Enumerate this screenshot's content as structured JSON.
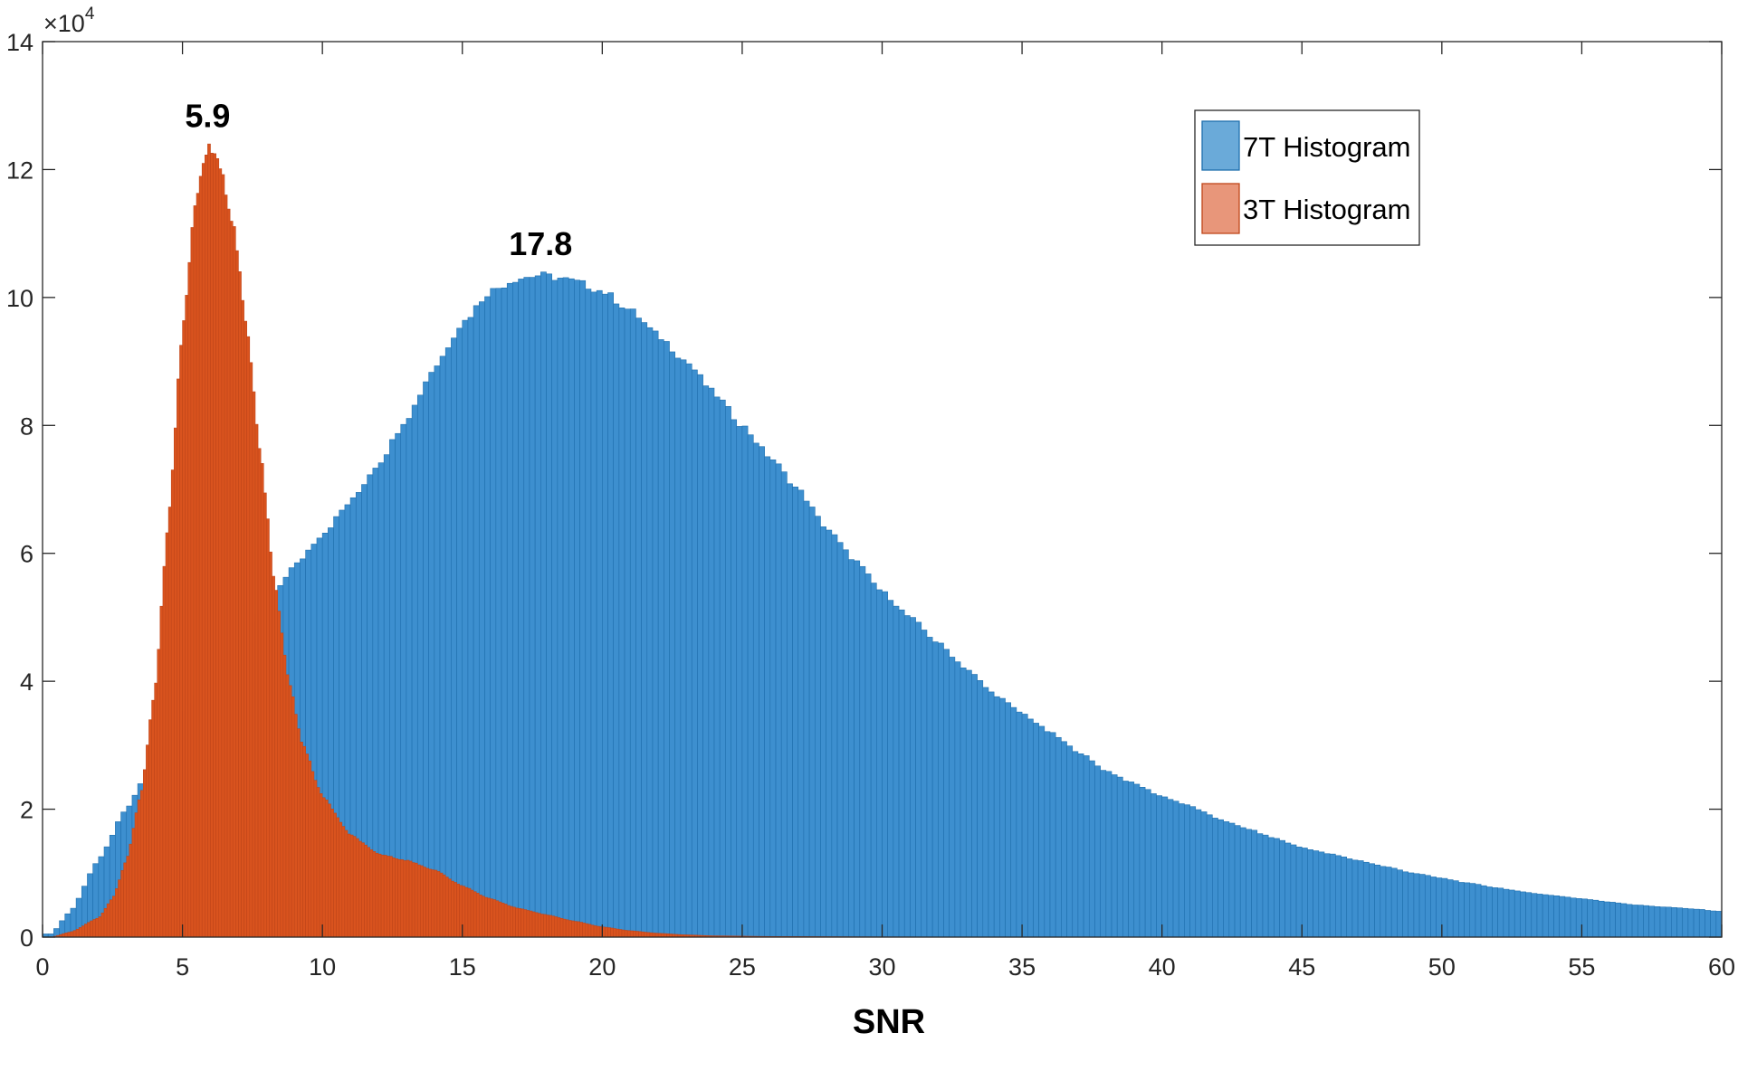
{
  "chart_data": {
    "type": "bar",
    "title": "",
    "xlabel": "SNR",
    "ylabel": "",
    "xlim": [
      0,
      60
    ],
    "ylim": [
      0,
      140000
    ],
    "y_exponent_label": "×10",
    "y_exponent_power": "4",
    "x_ticks": [
      0,
      5,
      10,
      15,
      20,
      25,
      30,
      35,
      40,
      45,
      50,
      55,
      60
    ],
    "x_tick_labels": [
      "0",
      "5",
      "10",
      "15",
      "20",
      "25",
      "30",
      "35",
      "40",
      "45",
      "50",
      "55",
      "60"
    ],
    "y_ticks": [
      0,
      20000,
      40000,
      60000,
      80000,
      100000,
      120000,
      140000
    ],
    "y_tick_labels": [
      "0",
      "2",
      "4",
      "6",
      "8",
      "10",
      "12",
      "14"
    ],
    "grid": false,
    "legend_position": "top-right",
    "series": [
      {
        "name": "7T Histogram",
        "color": "#3d8fcf",
        "edge_color": "#1f6fae",
        "legend_color": "#6aaad9",
        "bin_width": 0.2,
        "x_range": [
          0,
          60
        ],
        "key_points": [
          [
            0.3,
            500
          ],
          [
            1,
            4000
          ],
          [
            2,
            12000
          ],
          [
            3,
            20000
          ],
          [
            4,
            28000
          ],
          [
            5,
            35000
          ],
          [
            6,
            41000
          ],
          [
            7,
            46000
          ],
          [
            8,
            52000
          ],
          [
            9,
            58000
          ],
          [
            10,
            63000
          ],
          [
            11,
            68000
          ],
          [
            12,
            74000
          ],
          [
            13,
            81000
          ],
          [
            14,
            89000
          ],
          [
            15,
            96000
          ],
          [
            16,
            101000
          ],
          [
            17,
            103000
          ],
          [
            17.8,
            103500
          ],
          [
            18.5,
            103000
          ],
          [
            19,
            102500
          ],
          [
            20,
            101000
          ],
          [
            21,
            98000
          ],
          [
            22,
            94000
          ],
          [
            23,
            90000
          ],
          [
            24,
            85000
          ],
          [
            25,
            80000
          ],
          [
            26,
            75000
          ],
          [
            27,
            70000
          ],
          [
            28,
            64000
          ],
          [
            29,
            59000
          ],
          [
            30,
            54000
          ],
          [
            31,
            50000
          ],
          [
            32,
            46000
          ],
          [
            33,
            42000
          ],
          [
            34,
            38000
          ],
          [
            35,
            35000
          ],
          [
            36,
            32000
          ],
          [
            37,
            29000
          ],
          [
            38,
            26000
          ],
          [
            39,
            24000
          ],
          [
            40,
            22000
          ],
          [
            41,
            20500
          ],
          [
            42,
            18500
          ],
          [
            43,
            17000
          ],
          [
            44,
            15500
          ],
          [
            45,
            14000
          ],
          [
            46,
            13000
          ],
          [
            47,
            12000
          ],
          [
            48,
            11000
          ],
          [
            49,
            10000
          ],
          [
            50,
            9200
          ],
          [
            51,
            8400
          ],
          [
            52,
            7700
          ],
          [
            53,
            7000
          ],
          [
            54,
            6500
          ],
          [
            55,
            6000
          ],
          [
            56,
            5500
          ],
          [
            57,
            5000
          ],
          [
            58,
            4700
          ],
          [
            59,
            4400
          ],
          [
            60,
            4000
          ]
        ]
      },
      {
        "name": "3T Histogram",
        "color": "#d9531e",
        "edge_color": "#c0461a",
        "legend_color": "#e8967a",
        "bin_width": 0.1,
        "x_range": [
          0.3,
          36
        ],
        "key_points": [
          [
            0.3,
            0
          ],
          [
            1,
            800
          ],
          [
            2,
            3000
          ],
          [
            2.5,
            6000
          ],
          [
            3,
            12000
          ],
          [
            3.5,
            22000
          ],
          [
            4,
            38000
          ],
          [
            4.5,
            65000
          ],
          [
            5,
            95000
          ],
          [
            5.5,
            116000
          ],
          [
            5.9,
            123500
          ],
          [
            6.3,
            121000
          ],
          [
            6.8,
            112000
          ],
          [
            7.3,
            95000
          ],
          [
            7.8,
            75000
          ],
          [
            8.3,
            55000
          ],
          [
            8.8,
            40000
          ],
          [
            9.3,
            30000
          ],
          [
            10,
            22000
          ],
          [
            11,
            16000
          ],
          [
            12,
            13000
          ],
          [
            13,
            12000
          ],
          [
            14,
            10500
          ],
          [
            15,
            8000
          ],
          [
            16,
            6000
          ],
          [
            17,
            4500
          ],
          [
            18,
            3500
          ],
          [
            19,
            2500
          ],
          [
            20,
            1600
          ],
          [
            21,
            1000
          ],
          [
            22,
            600
          ],
          [
            23,
            350
          ],
          [
            24,
            200
          ],
          [
            26,
            100
          ],
          [
            30,
            40
          ],
          [
            36,
            0
          ]
        ]
      }
    ],
    "annotations": [
      {
        "text": "5.9",
        "x": 5.9,
        "y": 123500
      },
      {
        "text": "17.8",
        "x": 17.8,
        "y": 103500
      }
    ]
  }
}
